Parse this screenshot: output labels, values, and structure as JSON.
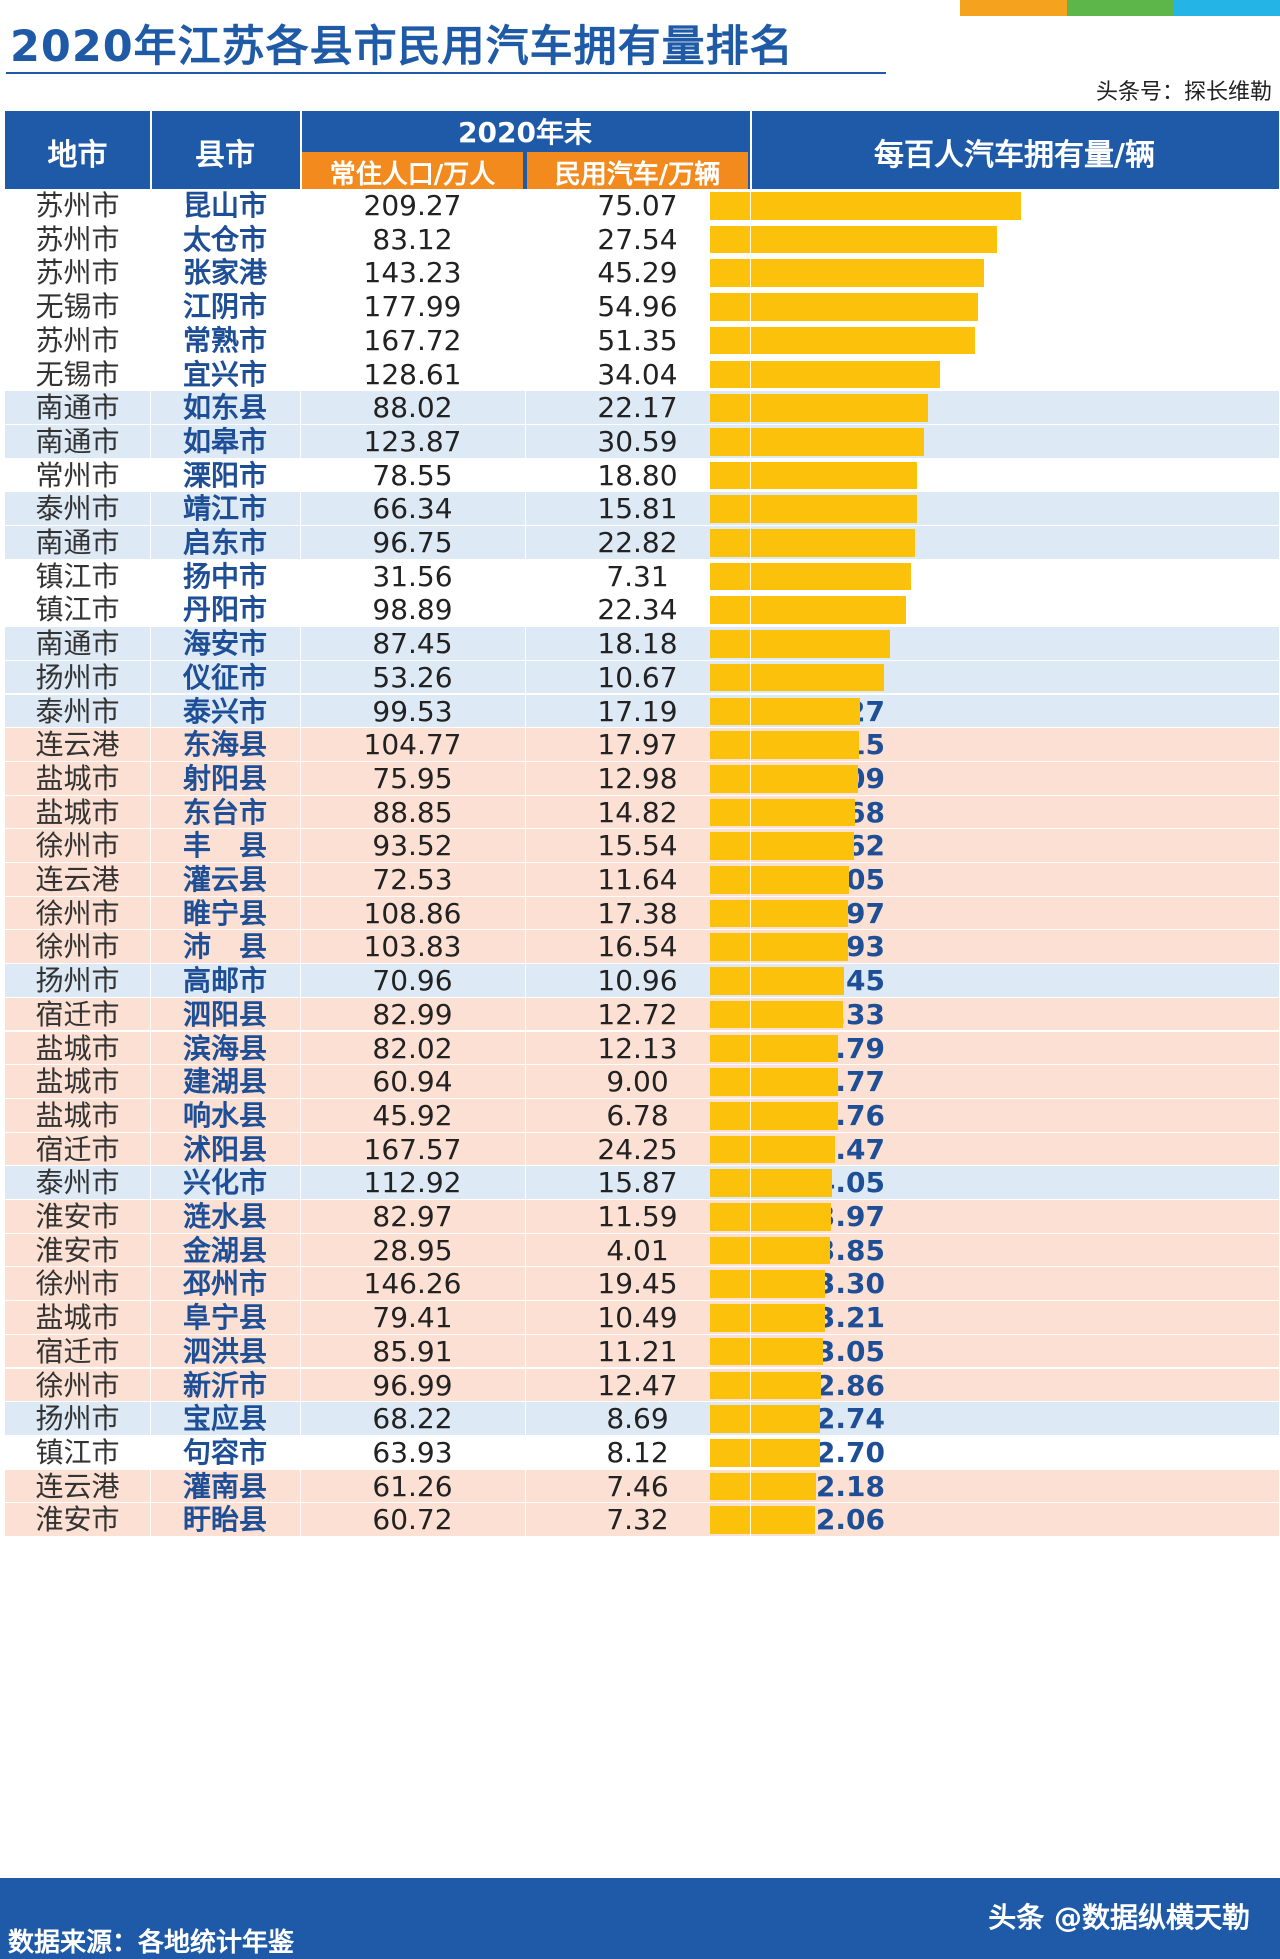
{
  "title": "2020年江苏各县市民用汽车拥有量排名",
  "credit": "头条号：探长维勒",
  "colors": {
    "header": "#1e5aa8",
    "subheader": "#f28a1e",
    "bar": "#fcc10a",
    "stripe1": "#f5a21e",
    "stripe2": "#5cb64a",
    "stripe3": "#24b4e6"
  },
  "header": {
    "col_city": "地市",
    "col_county": "县市",
    "col_year": "2020年末",
    "col_pop": "常住人口/万人",
    "col_cars": "民用汽车/万辆",
    "col_rate": "每百人汽车拥有量/辆"
  },
  "chart_data": {
    "type": "bar",
    "title": "2020年江苏各县市民用汽车拥有量排名",
    "ylabel": "每百人汽车拥有量/辆",
    "xlim": [
      0,
      35.87
    ],
    "rows": [
      {
        "city": "苏州市",
        "county": "昆山市",
        "pop": "209.27",
        "cars": "75.07",
        "rate": 35.87,
        "band": "white"
      },
      {
        "city": "苏州市",
        "county": "太仓市",
        "pop": "83.12",
        "cars": "27.54",
        "rate": 33.13,
        "band": "white"
      },
      {
        "city": "苏州市",
        "county": "张家港",
        "pop": "143.23",
        "cars": "45.29",
        "rate": 31.62,
        "band": "white"
      },
      {
        "city": "无锡市",
        "county": "江阴市",
        "pop": "177.99",
        "cars": "54.96",
        "rate": 30.88,
        "band": "white"
      },
      {
        "city": "苏州市",
        "county": "常熟市",
        "pop": "167.72",
        "cars": "51.35",
        "rate": 30.62,
        "band": "white"
      },
      {
        "city": "无锡市",
        "county": "宜兴市",
        "pop": "128.61",
        "cars": "34.04",
        "rate": 26.47,
        "band": "white"
      },
      {
        "city": "南通市",
        "county": "如东县",
        "pop": "88.02",
        "cars": "22.17",
        "rate": 25.19,
        "band": "blue"
      },
      {
        "city": "南通市",
        "county": "如皋市",
        "pop": "123.87",
        "cars": "30.59",
        "rate": 24.7,
        "band": "blue"
      },
      {
        "city": "常州市",
        "county": "溧阳市",
        "pop": "78.55",
        "cars": "18.80",
        "rate": 23.93,
        "band": "white"
      },
      {
        "city": "泰州市",
        "county": "靖江市",
        "pop": "66.34",
        "cars": "15.81",
        "rate": 23.83,
        "band": "blue"
      },
      {
        "city": "南通市",
        "county": "启东市",
        "pop": "96.75",
        "cars": "22.82",
        "rate": 23.59,
        "band": "blue"
      },
      {
        "city": "镇江市",
        "county": "扬中市",
        "pop": "31.56",
        "cars": "7.31",
        "rate": 23.16,
        "band": "white"
      },
      {
        "city": "镇江市",
        "county": "丹阳市",
        "pop": "98.89",
        "cars": "22.34",
        "rate": 22.59,
        "band": "white"
      },
      {
        "city": "南通市",
        "county": "海安市",
        "pop": "87.45",
        "cars": "18.18",
        "rate": 20.79,
        "band": "blue"
      },
      {
        "city": "扬州市",
        "county": "仪征市",
        "pop": "53.26",
        "cars": "10.67",
        "rate": 20.03,
        "band": "blue"
      },
      {
        "city": "泰州市",
        "county": "泰兴市",
        "pop": "99.53",
        "cars": "17.19",
        "rate": 17.27,
        "band": "blue"
      },
      {
        "city": "连云港",
        "county": "东海县",
        "pop": "104.77",
        "cars": "17.97",
        "rate": 17.15,
        "band": "pink"
      },
      {
        "city": "盐城市",
        "county": "射阳县",
        "pop": "75.95",
        "cars": "12.98",
        "rate": 17.09,
        "band": "pink"
      },
      {
        "city": "盐城市",
        "county": "东台市",
        "pop": "88.85",
        "cars": "14.82",
        "rate": 16.68,
        "band": "pink"
      },
      {
        "city": "徐州市",
        "county": "丰　县",
        "pop": "93.52",
        "cars": "15.54",
        "rate": 16.62,
        "band": "pink"
      },
      {
        "city": "连云港",
        "county": "灌云县",
        "pop": "72.53",
        "cars": "11.64",
        "rate": 16.05,
        "band": "pink"
      },
      {
        "city": "徐州市",
        "county": "睢宁县",
        "pop": "108.86",
        "cars": "17.38",
        "rate": 15.97,
        "band": "pink"
      },
      {
        "city": "徐州市",
        "county": "沛　县",
        "pop": "103.83",
        "cars": "16.54",
        "rate": 15.93,
        "band": "pink"
      },
      {
        "city": "扬州市",
        "county": "高邮市",
        "pop": "70.96",
        "cars": "10.96",
        "rate": 15.45,
        "band": "blue"
      },
      {
        "city": "宿迁市",
        "county": "泗阳县",
        "pop": "82.99",
        "cars": "12.72",
        "rate": 15.33,
        "band": "pink"
      },
      {
        "city": "盐城市",
        "county": "滨海县",
        "pop": "82.02",
        "cars": "12.13",
        "rate": 14.79,
        "band": "pink"
      },
      {
        "city": "盐城市",
        "county": "建湖县",
        "pop": "60.94",
        "cars": "9.00",
        "rate": 14.77,
        "band": "pink"
      },
      {
        "city": "盐城市",
        "county": "响水县",
        "pop": "45.92",
        "cars": "6.78",
        "rate": 14.76,
        "band": "pink"
      },
      {
        "city": "宿迁市",
        "county": "沭阳县",
        "pop": "167.57",
        "cars": "24.25",
        "rate": 14.47,
        "band": "pink"
      },
      {
        "city": "泰州市",
        "county": "兴化市",
        "pop": "112.92",
        "cars": "15.87",
        "rate": 14.05,
        "band": "blue"
      },
      {
        "city": "淮安市",
        "county": "涟水县",
        "pop": "82.97",
        "cars": "11.59",
        "rate": 13.97,
        "band": "pink"
      },
      {
        "city": "淮安市",
        "county": "金湖县",
        "pop": "28.95",
        "cars": "4.01",
        "rate": 13.85,
        "band": "pink"
      },
      {
        "city": "徐州市",
        "county": "邳州市",
        "pop": "146.26",
        "cars": "19.45",
        "rate": 13.3,
        "band": "pink"
      },
      {
        "city": "盐城市",
        "county": "阜宁县",
        "pop": "79.41",
        "cars": "10.49",
        "rate": 13.21,
        "band": "pink"
      },
      {
        "city": "宿迁市",
        "county": "泗洪县",
        "pop": "85.91",
        "cars": "11.21",
        "rate": 13.05,
        "band": "pink"
      },
      {
        "city": "徐州市",
        "county": "新沂市",
        "pop": "96.99",
        "cars": "12.47",
        "rate": 12.86,
        "band": "pink"
      },
      {
        "city": "扬州市",
        "county": "宝应县",
        "pop": "68.22",
        "cars": "8.69",
        "rate": 12.74,
        "band": "blue"
      },
      {
        "city": "镇江市",
        "county": "句容市",
        "pop": "63.93",
        "cars": "8.12",
        "rate": 12.7,
        "band": "white"
      },
      {
        "city": "连云港",
        "county": "灌南县",
        "pop": "61.26",
        "cars": "7.46",
        "rate": 12.18,
        "band": "pink"
      },
      {
        "city": "淮安市",
        "county": "盱眙县",
        "pop": "60.72",
        "cars": "7.32",
        "rate": 12.06,
        "band": "pink"
      }
    ]
  },
  "footer": {
    "source": "数据来源：各地统计年鉴",
    "watermark": "头条 @数据纵横天勒"
  }
}
